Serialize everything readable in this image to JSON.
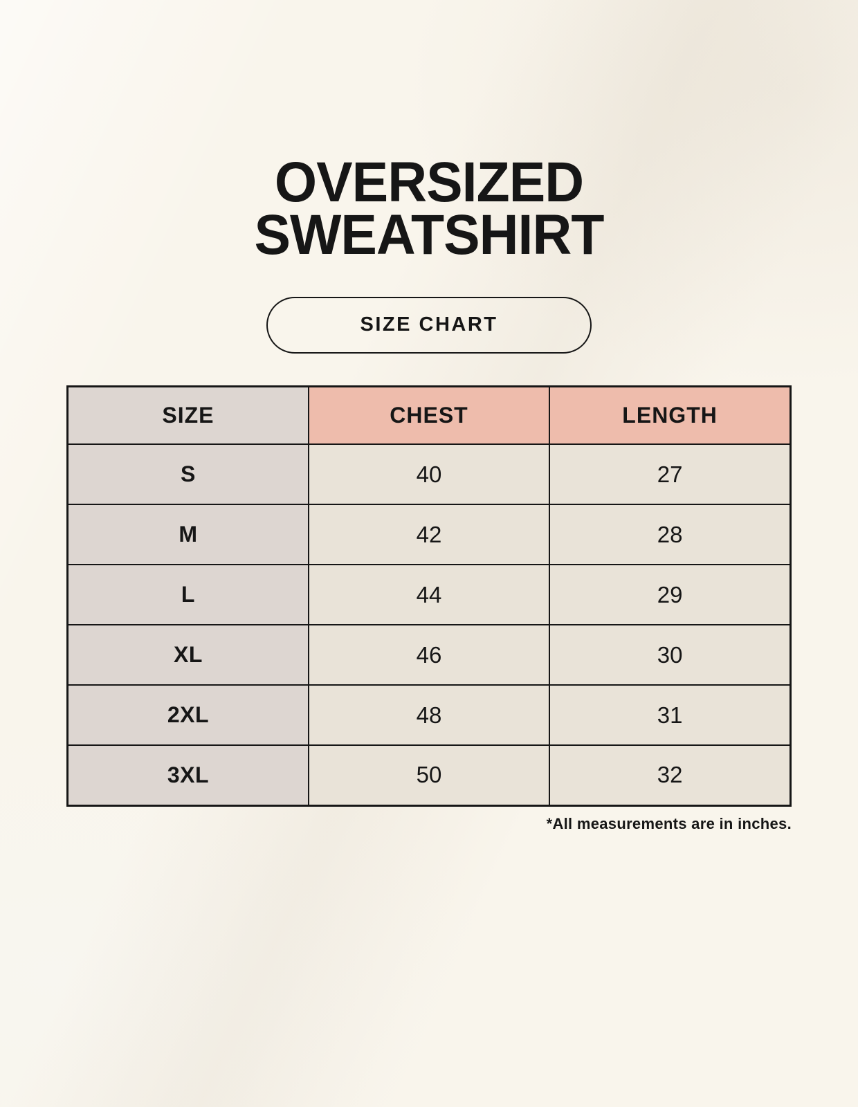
{
  "page": {
    "title_line1": "OVERSIZED",
    "title_line2": "SWEATSHIRT",
    "badge_label": "SIZE CHART",
    "footnote": "*All measurements are in inches."
  },
  "table": {
    "columns": [
      "SIZE",
      "CHEST",
      "LENGTH"
    ],
    "rows": [
      {
        "size": "S",
        "chest": "40",
        "length": "27"
      },
      {
        "size": "M",
        "chest": "42",
        "length": "28"
      },
      {
        "size": "L",
        "chest": "44",
        "length": "29"
      },
      {
        "size": "XL",
        "chest": "46",
        "length": "30"
      },
      {
        "size": "2XL",
        "chest": "48",
        "length": "31"
      },
      {
        "size": "3XL",
        "chest": "50",
        "length": "32"
      }
    ]
  },
  "colors": {
    "background": "#f9f5ec",
    "header_size_bg": "#ddd6d1",
    "header_measure_bg": "#eebcac",
    "row_label_bg": "#ddd6d1",
    "data_cell_bg": "#e9e3d8",
    "border": "#161616",
    "text": "#161616"
  },
  "chart_data": {
    "type": "table",
    "title": "OVERSIZED SWEATSHIRT - SIZE CHART",
    "columns": [
      "SIZE",
      "CHEST",
      "LENGTH"
    ],
    "rows": [
      [
        "S",
        40,
        27
      ],
      [
        "M",
        42,
        28
      ],
      [
        "L",
        44,
        29
      ],
      [
        "XL",
        46,
        30
      ],
      [
        "2XL",
        48,
        31
      ],
      [
        "3XL",
        50,
        32
      ]
    ],
    "units": "inches",
    "notes": "*All measurements are in inches."
  }
}
